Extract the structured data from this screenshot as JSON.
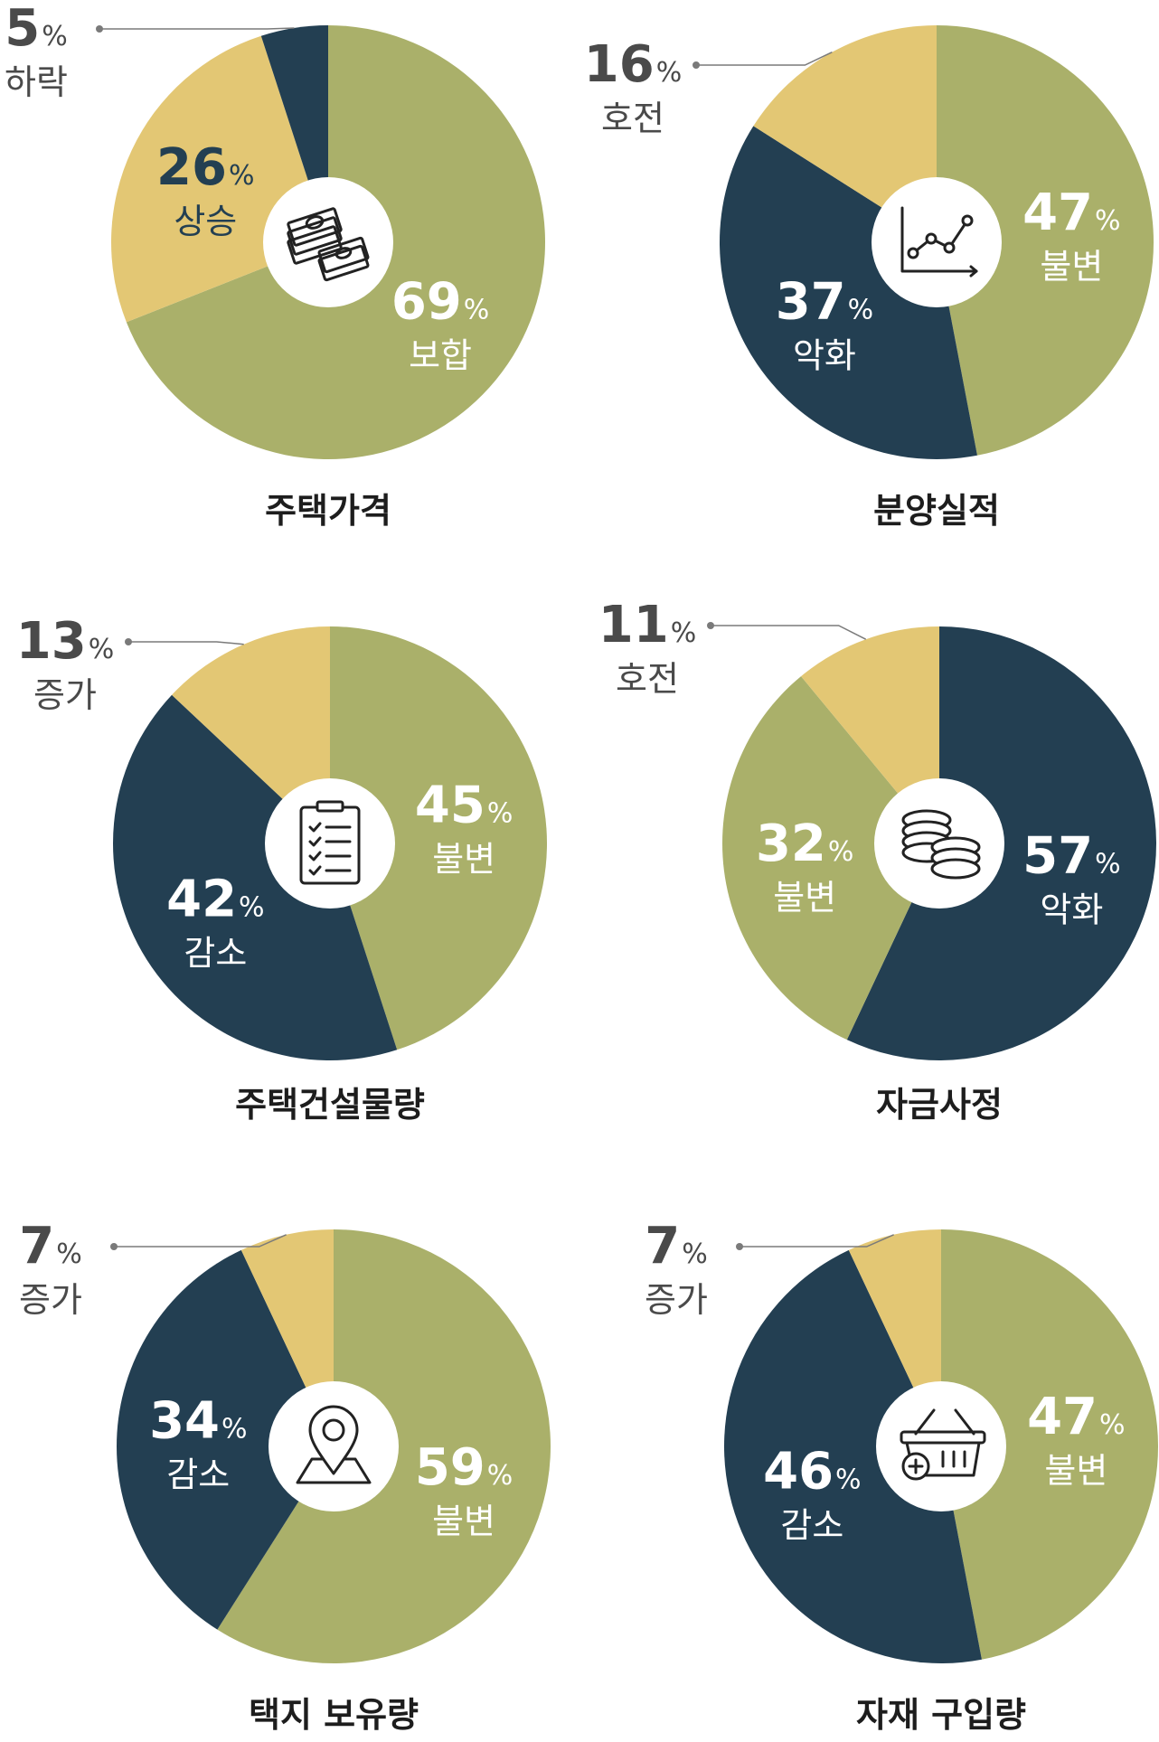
{
  "colors": {
    "olive": "#aab06a",
    "navy": "#233f52",
    "gold": "#e3c774",
    "label_light": "#ffffff",
    "label_dark": "#233f52",
    "outside_text": "#4a4a4a",
    "leader": "#7a7a7a"
  },
  "chart_data": [
    {
      "type": "pie",
      "title": "주택가격",
      "icon": "money-icon",
      "slices": [
        {
          "label": "보합",
          "value": 69,
          "color": "olive"
        },
        {
          "label": "상승",
          "value": 26,
          "color": "gold"
        },
        {
          "label": "하락",
          "value": 5,
          "color": "navy"
        }
      ]
    },
    {
      "type": "pie",
      "title": "분양실적",
      "icon": "line-chart-icon",
      "slices": [
        {
          "label": "불변",
          "value": 47,
          "color": "olive"
        },
        {
          "label": "악화",
          "value": 37,
          "color": "navy"
        },
        {
          "label": "호전",
          "value": 16,
          "color": "gold"
        }
      ]
    },
    {
      "type": "pie",
      "title": "주택건설물량",
      "icon": "checklist-icon",
      "slices": [
        {
          "label": "불변",
          "value": 45,
          "color": "olive"
        },
        {
          "label": "감소",
          "value": 42,
          "color": "navy"
        },
        {
          "label": "증가",
          "value": 13,
          "color": "gold"
        }
      ]
    },
    {
      "type": "pie",
      "title": "자금사정",
      "icon": "coins-icon",
      "slices": [
        {
          "label": "악화",
          "value": 57,
          "color": "navy"
        },
        {
          "label": "불변",
          "value": 32,
          "color": "olive"
        },
        {
          "label": "호전",
          "value": 11,
          "color": "gold"
        }
      ]
    },
    {
      "type": "pie",
      "title": "택지 보유량",
      "icon": "location-pin-icon",
      "slices": [
        {
          "label": "불변",
          "value": 59,
          "color": "olive"
        },
        {
          "label": "감소",
          "value": 34,
          "color": "navy"
        },
        {
          "label": "증가",
          "value": 7,
          "color": "gold"
        }
      ]
    },
    {
      "type": "pie",
      "title": "자재 구입량",
      "icon": "basket-add-icon",
      "slices": [
        {
          "label": "불변",
          "value": 47,
          "color": "olive"
        },
        {
          "label": "감소",
          "value": 46,
          "color": "navy"
        },
        {
          "label": "증가",
          "value": 7,
          "color": "gold"
        }
      ]
    }
  ]
}
